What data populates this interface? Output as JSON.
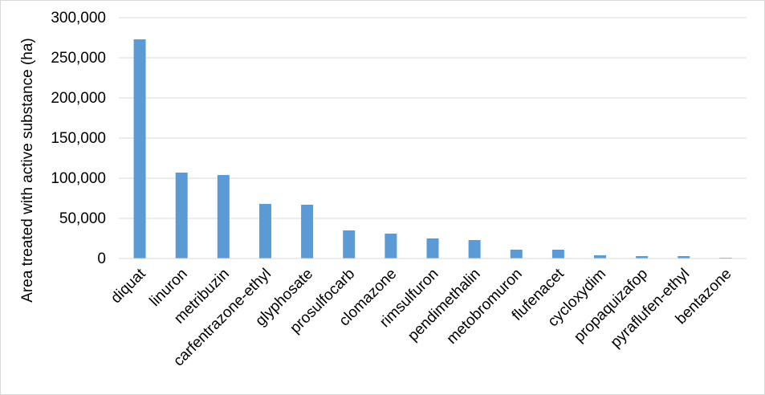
{
  "chart_data": {
    "type": "bar",
    "title": "",
    "xlabel": "",
    "ylabel": "Area treated with active substance (ha)",
    "ylim": [
      0,
      300000
    ],
    "yticks": [
      0,
      50000,
      100000,
      150000,
      200000,
      250000,
      300000
    ],
    "ytick_labels": [
      "0",
      "50,000",
      "100,000",
      "150,000",
      "200,000",
      "250,000",
      "300,000"
    ],
    "grid": true,
    "bar_color": "#5b9bd5",
    "grid_color": "#d9d9d9",
    "categories": [
      "diquat",
      "linuron",
      "metribuzin",
      "carfentrazone-ethyl",
      "glyphosate",
      "prosulfocarb",
      "clomazone",
      "rimsulfuron",
      "pendimethalin",
      "metobromuron",
      "flufenacet",
      "cycloxydim",
      "propaquizafop",
      "pyraflufen-ethyl",
      "bentazone"
    ],
    "values": [
      273000,
      107000,
      104000,
      68000,
      67000,
      35000,
      31000,
      25000,
      23000,
      11000,
      11000,
      4000,
      3000,
      3000,
      1000
    ]
  }
}
